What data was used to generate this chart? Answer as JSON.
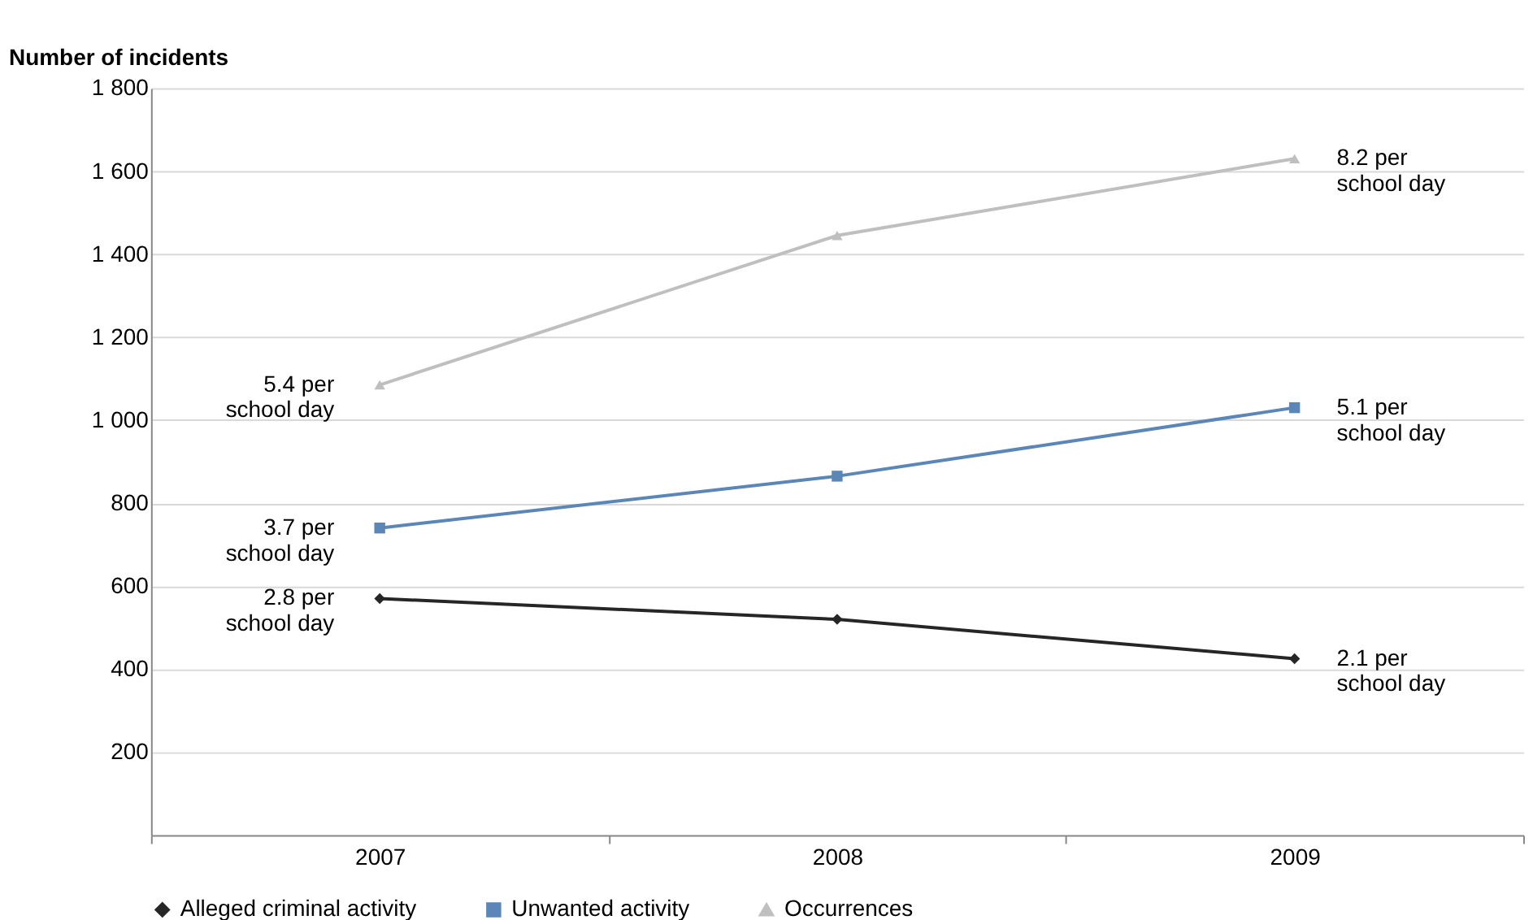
{
  "chart_data": {
    "type": "line",
    "ylabel": "Number of incidents",
    "categories": [
      "2007",
      "2008",
      "2009"
    ],
    "series": [
      {
        "name": "Alleged criminal activity",
        "color": "#262626",
        "marker": "diamond",
        "values": [
          570,
          520,
          425
        ]
      },
      {
        "name": "Unwanted activity",
        "color": "#5b86b8",
        "marker": "square",
        "values": [
          740,
          865,
          1030
        ]
      },
      {
        "name": "Occurrences",
        "color": "#bfbfbf",
        "marker": "triangle",
        "values": [
          1085,
          1445,
          1630
        ]
      }
    ],
    "ylim": [
      0,
      1800
    ],
    "yticks": [
      {
        "value": 200,
        "label": "200"
      },
      {
        "value": 400,
        "label": "400"
      },
      {
        "value": 600,
        "label": "600"
      },
      {
        "value": 800,
        "label": "800"
      },
      {
        "value": 1000,
        "label": "1 000"
      },
      {
        "value": 1200,
        "label": "1 200"
      },
      {
        "value": 1400,
        "label": "1 400"
      },
      {
        "value": 1600,
        "label": "1 600"
      },
      {
        "value": 1800,
        "label": "1 800"
      }
    ],
    "grid": "y",
    "legend": "bottom",
    "annotations": [
      {
        "text": "2.8 per\nschool day",
        "x": "2007",
        "y": 570
      },
      {
        "text": "3.7 per\nschool day",
        "x": "2007",
        "y": 740
      },
      {
        "text": "5.4 per\nschool day",
        "x": "2007",
        "y": 1085
      },
      {
        "text": "2.1 per\nschool day",
        "x": "2009",
        "y": 425
      },
      {
        "text": "5.1 per\nschool day",
        "x": "2009",
        "y": 1030
      },
      {
        "text": "8.2 per\nschool day",
        "x": "2009",
        "y": 1630
      }
    ]
  }
}
